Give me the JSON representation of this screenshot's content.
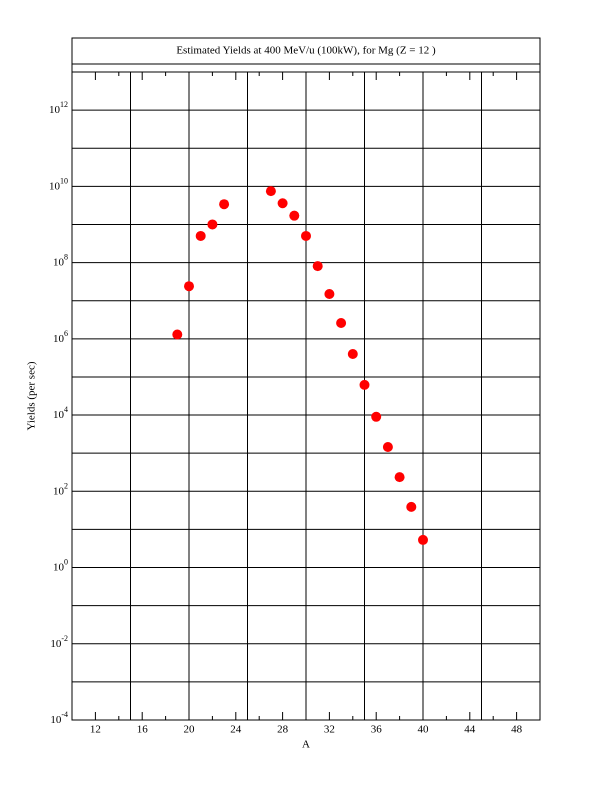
{
  "chart_data": {
    "type": "scatter",
    "title": "Estimated Yields at 400 MeV/u (100kW), for Mg (Z = 12 )",
    "x_label": "A",
    "y_label": "Yields (per sec)",
    "log_y": true,
    "grid": true,
    "series": [
      {
        "color": "#ff0000",
        "x": [
          19,
          20,
          21,
          22,
          23,
          27,
          28,
          29,
          30,
          31,
          32,
          33,
          34,
          35,
          36,
          37,
          38,
          39,
          40
        ],
        "values": [
          1300000,
          24000000,
          500000000,
          1000000000,
          3400000000,
          7500000000,
          3600000000,
          1700000000,
          500000000,
          81000000,
          15000000,
          2600000,
          400000,
          62000,
          9000,
          1450,
          235,
          39,
          5.3
        ]
      }
    ],
    "xlim": [
      10,
      50
    ],
    "xticks": [
      12,
      16,
      20,
      24,
      28,
      32,
      36,
      40,
      44,
      48
    ],
    "xminorticks": [
      14,
      18,
      22,
      26,
      30,
      34,
      38,
      42,
      46
    ],
    "xgrid": [
      15,
      20,
      25,
      30,
      35,
      40,
      45
    ],
    "ylim": [
      0.0001,
      10000000000000
    ],
    "yticks": [
      {
        "value": 0.0001,
        "label": "10^-4"
      },
      {
        "value": 0.01,
        "label": "10^-2"
      },
      {
        "value": 1,
        "label": "10^0"
      },
      {
        "value": 100,
        "label": "10^2"
      },
      {
        "value": 10000,
        "label": "10^4"
      },
      {
        "value": 1000000,
        "label": "10^6"
      },
      {
        "value": 100000000,
        "label": "10^8"
      },
      {
        "value": 10000000000,
        "label": "10^10"
      },
      {
        "value": 1000000000000,
        "label": "10^12"
      }
    ],
    "ygrid": [
      0.001,
      0.1,
      10,
      1000,
      100000,
      10000000,
      1000000000,
      100000000000
    ]
  }
}
